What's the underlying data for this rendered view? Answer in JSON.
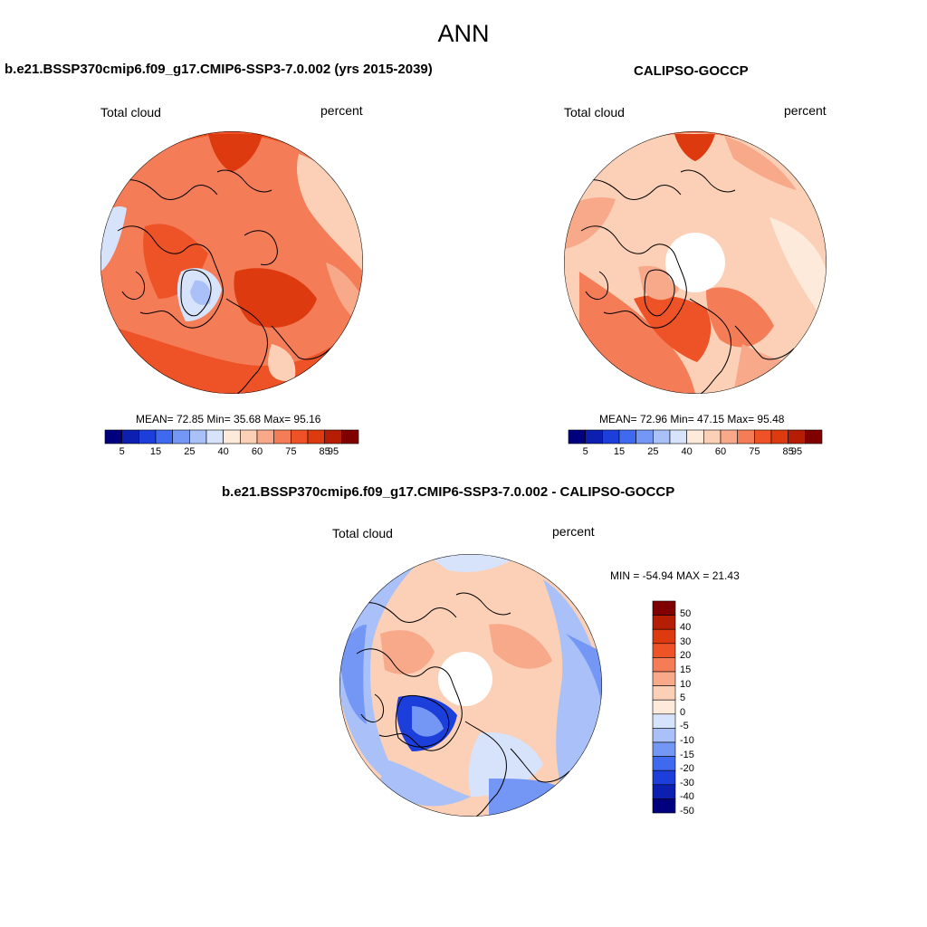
{
  "figure": {
    "title": "ANN",
    "diff_title": "b.e21.BSSP370cmip6.f09_g17.CMIP6-SSP3-7.0.002 - CALIPSO-GOCCP"
  },
  "panels": [
    {
      "title": "b.e21.BSSP370cmip6.f09_g17.CMIP6-SSP3-7.0.002 (yrs 2015-2039)",
      "left_label": "Total cloud",
      "right_label": "percent",
      "stats": "MEAN=  72.85   Min=  35.68   Max=  95.16"
    },
    {
      "title": "CALIPSO-GOCCP",
      "left_label": "Total cloud",
      "right_label": "percent",
      "stats": "MEAN=  72.96   Min=  47.15   Max=  95.48"
    },
    {
      "title": "",
      "left_label": "Total cloud",
      "right_label": "percent",
      "stats": "MIN = -54.94 MAX =  21.43"
    }
  ],
  "colorbar_h": {
    "labels": [
      "5",
      "15",
      "25",
      "40",
      "60",
      "75",
      "85",
      "95"
    ],
    "colors": [
      "#00007f",
      "#0c1fb0",
      "#1c3fdc",
      "#3f6af0",
      "#7497f5",
      "#a9c1f8",
      "#d6e3fb",
      "#fdeada",
      "#fbd0b7",
      "#f8a98a",
      "#f47d57",
      "#ee5327",
      "#dd3a0f",
      "#b51e05",
      "#800000"
    ]
  },
  "colorbar_v": {
    "labels": [
      "50",
      "40",
      "30",
      "20",
      "15",
      "10",
      "5",
      "0",
      "-5",
      "-10",
      "-15",
      "-20",
      "-30",
      "-40",
      "-50"
    ],
    "colors": [
      "#800000",
      "#b51e05",
      "#dd3a0f",
      "#ee5327",
      "#f47d57",
      "#f8a98a",
      "#fbd0b7",
      "#fdeada",
      "#d6e3fb",
      "#a9c1f8",
      "#7497f5",
      "#3f6af0",
      "#1c3fdc",
      "#0c1fb0",
      "#00007f"
    ]
  }
}
